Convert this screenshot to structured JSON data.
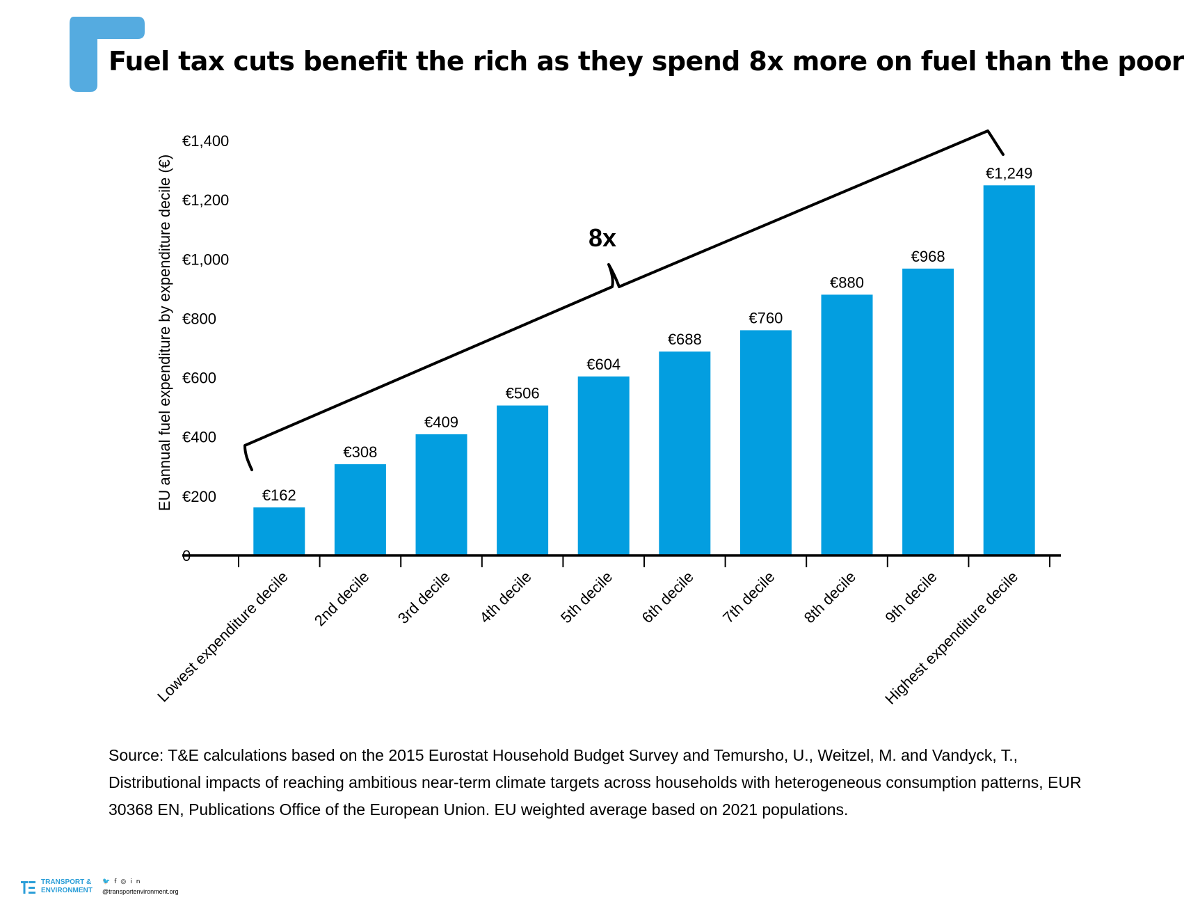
{
  "title": "Fuel tax cuts benefit the rich as they spend 8x more on fuel than the poor",
  "accent_color": "#55abe0",
  "bar_color": "#039ee0",
  "chart_data": {
    "type": "bar",
    "ylabel": "EU annual fuel expenditure by expenditure decile (€)",
    "ylim": [
      0,
      1400
    ],
    "yticks": [
      0,
      200,
      400,
      600,
      800,
      1000,
      1200,
      1400
    ],
    "ytick_labels": [
      "0",
      "€200",
      "€400",
      "€600",
      "€800",
      "€1,000",
      "€1,200",
      "€1,400"
    ],
    "categories": [
      "Lowest expenditure decile",
      "2nd decile",
      "3rd decile",
      "4th decile",
      "5th decile",
      "6th decile",
      "7th decile",
      "8th decile",
      "9th decile",
      "Highest expenditure decile"
    ],
    "values": [
      162,
      308,
      409,
      506,
      604,
      688,
      760,
      880,
      968,
      1249
    ],
    "value_labels": [
      "€162",
      "€308",
      "€409",
      "€506",
      "€604",
      "€688",
      "€760",
      "€880",
      "€968",
      "€1,249"
    ],
    "annotation": "8x",
    "grid": false,
    "legend": "none"
  },
  "source": "Source: T&E calculations based on the 2015 Eurostat Household Budget Survey and Temursho, U., Weitzel, M. and Vandyck, T., Distributional impacts of reaching ambitious near-term climate targets across households with heterogeneous consumption patterns, EUR 30368 EN, Publications Office of the European Union. EU weighted average based on 2021 populations.",
  "footer": {
    "logo_line1": "TRANSPORT &",
    "logo_line2": "ENVIRONMENT",
    "social_icons": [
      "twitter-icon",
      "facebook-icon",
      "instagram-icon",
      "linkedin-icon"
    ],
    "handle": "@transportenvironment.org"
  }
}
